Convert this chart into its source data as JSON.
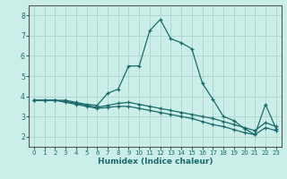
{
  "xlabel": "Humidex (Indice chaleur)",
  "bg_color": "#cceee8",
  "grid_color": "#b0d8d0",
  "line_color": "#1a6b6b",
  "xlim": [
    -0.5,
    23.5
  ],
  "ylim": [
    1.5,
    8.5
  ],
  "yticks": [
    2,
    3,
    4,
    5,
    6,
    7,
    8
  ],
  "xticks": [
    0,
    1,
    2,
    3,
    4,
    5,
    6,
    7,
    8,
    9,
    10,
    11,
    12,
    13,
    14,
    15,
    16,
    17,
    18,
    19,
    20,
    21,
    22,
    23
  ],
  "series1_x": [
    0,
    1,
    2,
    3,
    4,
    5,
    6,
    7,
    8,
    9,
    10,
    11,
    12,
    13,
    14,
    15,
    16,
    17,
    18,
    19,
    20,
    21,
    22,
    23
  ],
  "series1_y": [
    3.8,
    3.8,
    3.8,
    3.8,
    3.7,
    3.6,
    3.55,
    4.15,
    4.35,
    5.5,
    5.5,
    7.25,
    7.8,
    6.85,
    6.65,
    6.35,
    4.65,
    3.85,
    3.0,
    2.8,
    2.4,
    2.1,
    3.6,
    2.4
  ],
  "series2_x": [
    0,
    1,
    2,
    3,
    4,
    5,
    6,
    7,
    8,
    9,
    10,
    11,
    12,
    13,
    14,
    15,
    16,
    17,
    18,
    19,
    20,
    21,
    22,
    23
  ],
  "series2_y": [
    3.8,
    3.8,
    3.8,
    3.75,
    3.65,
    3.55,
    3.45,
    3.55,
    3.65,
    3.7,
    3.6,
    3.5,
    3.4,
    3.3,
    3.2,
    3.1,
    3.0,
    2.9,
    2.75,
    2.6,
    2.45,
    2.3,
    2.7,
    2.5
  ],
  "series3_x": [
    0,
    1,
    2,
    3,
    4,
    5,
    6,
    7,
    8,
    9,
    10,
    11,
    12,
    13,
    14,
    15,
    16,
    17,
    18,
    19,
    20,
    21,
    22,
    23
  ],
  "series3_y": [
    3.8,
    3.8,
    3.8,
    3.7,
    3.6,
    3.5,
    3.4,
    3.45,
    3.5,
    3.5,
    3.4,
    3.3,
    3.2,
    3.1,
    3.0,
    2.9,
    2.75,
    2.6,
    2.5,
    2.35,
    2.2,
    2.1,
    2.45,
    2.3
  ]
}
